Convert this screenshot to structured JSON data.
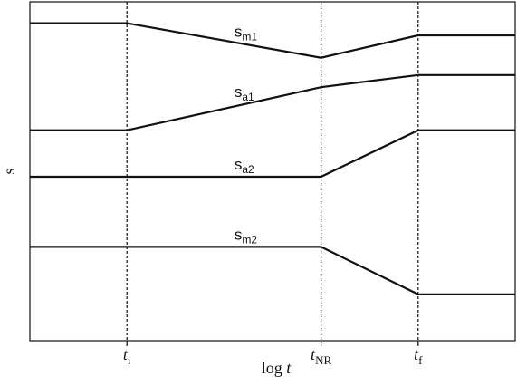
{
  "chart_data": {
    "type": "line",
    "title": "",
    "xlabel": {
      "prefix": "log ",
      "var": "t"
    },
    "ylabel": "s",
    "grid": false,
    "legend": "none",
    "ylim": [
      0,
      100
    ],
    "xlim": [
      0,
      100
    ],
    "x_markers": [
      {
        "var": "t",
        "sub": "i",
        "x": 20
      },
      {
        "var": "t",
        "sub": "NR",
        "x": 60
      },
      {
        "var": "t",
        "sub": "f",
        "x": 80
      }
    ],
    "series": [
      {
        "name": {
          "base": "s",
          "sub": "m1"
        },
        "points": [
          [
            0,
            93.7
          ],
          [
            20,
            93.7
          ],
          [
            60,
            83.5
          ],
          [
            80,
            90.1
          ],
          [
            100,
            90.1
          ]
        ]
      },
      {
        "name": {
          "base": "s",
          "sub": "a1"
        },
        "points": [
          [
            0,
            62.1
          ],
          [
            20,
            62.1
          ],
          [
            60,
            74.8
          ],
          [
            80,
            78.4
          ],
          [
            100,
            78.4
          ]
        ]
      },
      {
        "name": {
          "base": "s",
          "sub": "a2"
        },
        "points": [
          [
            0,
            48.4
          ],
          [
            20,
            48.4
          ],
          [
            60,
            48.4
          ],
          [
            80,
            62.1
          ],
          [
            100,
            62.1
          ]
        ]
      },
      {
        "name": {
          "base": "s",
          "sub": "m2"
        },
        "points": [
          [
            0,
            27.7
          ],
          [
            20,
            27.7
          ],
          [
            60,
            27.7
          ],
          [
            80,
            13.7
          ],
          [
            100,
            13.7
          ]
        ]
      }
    ],
    "colors": {
      "line": "#111111"
    }
  }
}
